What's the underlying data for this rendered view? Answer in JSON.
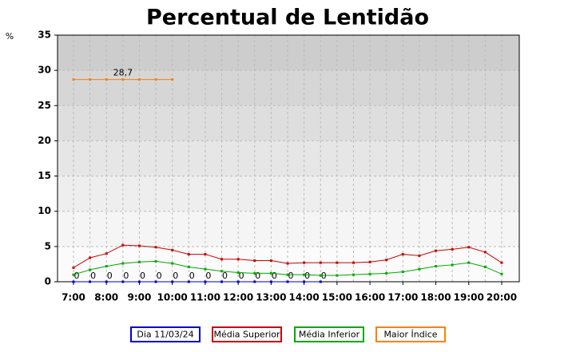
{
  "chart_data": {
    "type": "line",
    "title": "Percentual de Lentidão",
    "ylabel": "%",
    "categories": [
      "7:00",
      null,
      "8:00",
      null,
      "9:00",
      null,
      "10:00",
      null,
      "11:00",
      null,
      "12:00",
      null,
      "13:00",
      null,
      "14:00",
      null,
      "15:00",
      null,
      "16:00",
      null,
      "17:00",
      null,
      "18:00",
      null,
      "19:00",
      null,
      "20:00"
    ],
    "ylim": [
      0,
      35
    ],
    "yticks": [
      0,
      5,
      10,
      15,
      20,
      25,
      30,
      35
    ],
    "grid": true,
    "legend": "bottom",
    "series": [
      {
        "name": "Dia 11/03/24",
        "color": "#0000cc",
        "show_labels": true,
        "values": [
          0,
          0,
          0,
          0,
          0,
          0,
          0,
          0,
          0,
          0,
          0,
          0,
          0,
          0,
          0,
          0,
          null,
          null,
          null,
          null,
          null,
          null,
          null,
          null,
          null,
          null,
          null
        ]
      },
      {
        "name": "Média Superior",
        "color": "#cc0000",
        "values": [
          2.0,
          3.4,
          4.0,
          5.2,
          5.1,
          4.9,
          4.5,
          3.9,
          3.9,
          3.2,
          3.2,
          3.0,
          3.0,
          2.6,
          2.7,
          2.7,
          2.7,
          2.7,
          2.8,
          3.1,
          3.9,
          3.7,
          4.4,
          4.6,
          4.9,
          4.2,
          2.7
        ]
      },
      {
        "name": "Média Inferior",
        "color": "#00aa00",
        "values": [
          1.0,
          1.7,
          2.2,
          2.6,
          2.8,
          2.9,
          2.6,
          2.1,
          1.8,
          1.5,
          1.3,
          1.2,
          1.2,
          1.0,
          1.0,
          0.9,
          0.9,
          1.0,
          1.1,
          1.2,
          1.4,
          1.8,
          2.2,
          2.4,
          2.7,
          2.1,
          1.1
        ]
      },
      {
        "name": "Maior Índice",
        "color": "#ff8000",
        "values": [
          28.7,
          28.7,
          28.7,
          28.7,
          28.7,
          28.7,
          28.7,
          null,
          null,
          null,
          null,
          null,
          null,
          null,
          null,
          null,
          null,
          null,
          null,
          null,
          null,
          null,
          null,
          null,
          null,
          null,
          null
        ],
        "value_labels": [
          null,
          null,
          null,
          "28,7",
          null,
          null,
          null,
          null,
          null,
          null,
          null,
          null,
          null,
          null,
          null,
          null,
          null,
          null,
          null,
          null,
          null,
          null,
          null,
          null,
          null,
          null,
          null
        ]
      }
    ]
  }
}
